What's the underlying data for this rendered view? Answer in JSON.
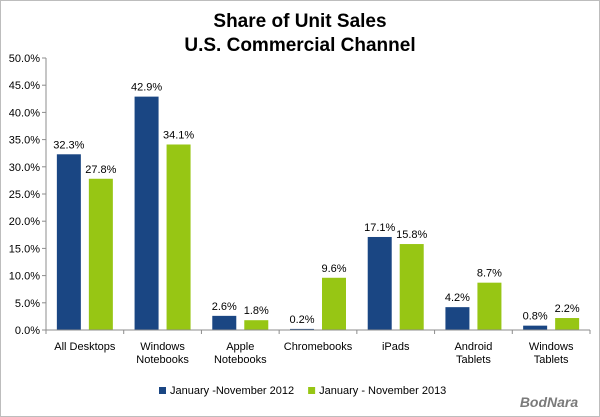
{
  "chart_data": {
    "type": "bar",
    "title": "Share of Unit Sales",
    "subtitle": "U.S. Commercial Channel",
    "categories": [
      [
        "All Desktops"
      ],
      [
        "Windows",
        "Notebooks"
      ],
      [
        "Apple",
        "Notebooks"
      ],
      [
        "Chromebooks"
      ],
      [
        "iPads"
      ],
      [
        "Android",
        "Tablets"
      ],
      [
        "Windows",
        "Tablets"
      ]
    ],
    "series": [
      {
        "name": "January -November 2012",
        "color": "#1a4683",
        "values": [
          32.3,
          42.9,
          2.6,
          0.2,
          17.1,
          4.2,
          0.8
        ],
        "labels": [
          "32.3%",
          "42.9%",
          "2.6%",
          "0.2%",
          "17.1%",
          "4.2%",
          "0.8%"
        ]
      },
      {
        "name": "January - November 2013",
        "color": "#97c614",
        "values": [
          27.8,
          34.1,
          1.8,
          9.6,
          15.8,
          8.7,
          2.2
        ],
        "labels": [
          "27.8%",
          "34.1%",
          "1.8%",
          "9.6%",
          "15.8%",
          "8.7%",
          "2.2%"
        ]
      }
    ],
    "ylim": [
      0,
      50
    ],
    "yticks": [
      "0.0%",
      "5.0%",
      "10.0%",
      "15.0%",
      "20.0%",
      "25.0%",
      "30.0%",
      "35.0%",
      "40.0%",
      "45.0%",
      "50.0%"
    ],
    "xlabel": "",
    "ylabel": "",
    "grid": false,
    "legend_position": "bottom"
  },
  "watermark": "BodNara"
}
